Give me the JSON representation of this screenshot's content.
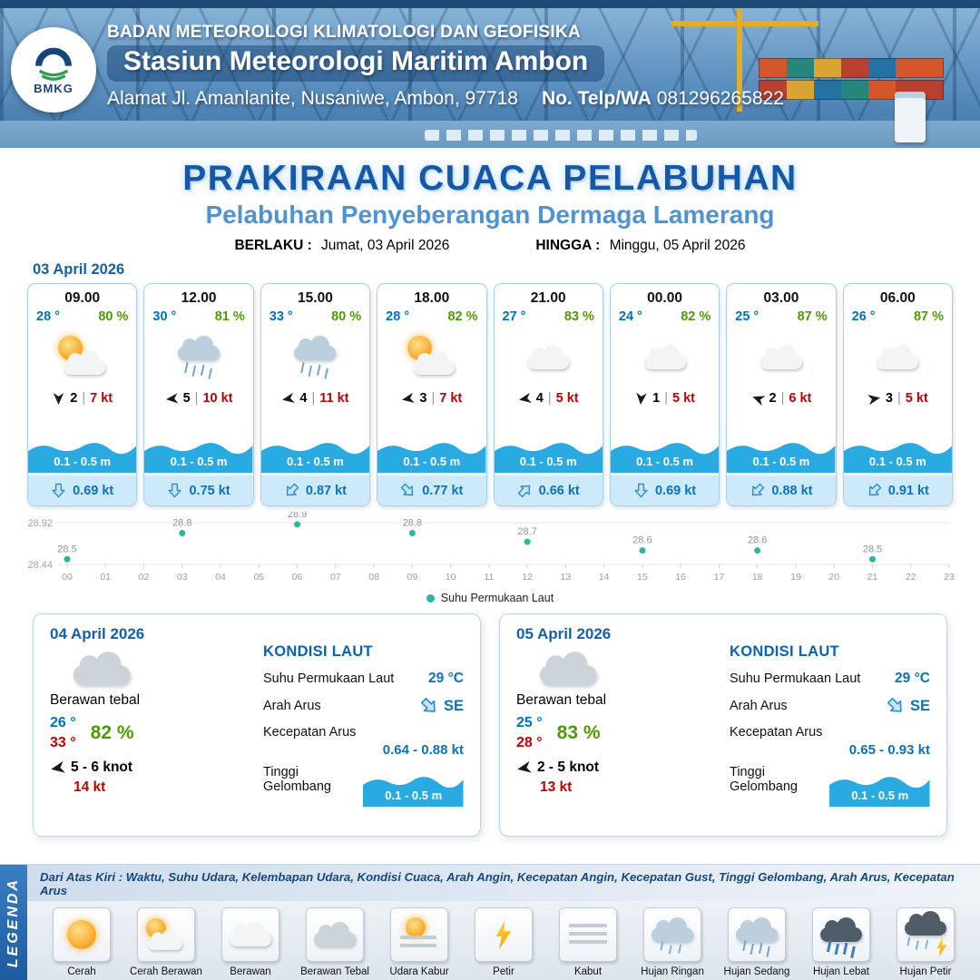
{
  "header": {
    "logo_text": "BMKG",
    "agency": "BADAN METEOROLOGI KLIMATOLOGI DAN GEOFISIKA",
    "station": "Stasiun Meteorologi Maritim Ambon",
    "address": "Alamat Jl. Amanlanite, Nusaniwe, Ambon, 97718",
    "phone_label": "No. Telp/WA",
    "phone_number": "081296265822"
  },
  "title": {
    "main": "PRAKIRAAN CUACA PELABUHAN",
    "subtitle": "Pelabuhan Penyeberangan Dermaga Lamerang",
    "valid_from_label": "BERLAKU :",
    "valid_from": "Jumat, 03 April 2026",
    "valid_to_label": "HINGGA :",
    "valid_to": "Minggu, 05 April 2026"
  },
  "forecast": {
    "date": "03 April 2026",
    "cards": [
      {
        "time": "09.00",
        "temp": "28 °",
        "humidity": "80 %",
        "weather": "cerah berawan",
        "wind_speed": "2",
        "divider": "|",
        "gust": "7 kt",
        "wave": "0.1 - 0.5 m",
        "current_speed": "0.69 kt",
        "wind_deg": 180,
        "current_deg": 180
      },
      {
        "time": "12.00",
        "temp": "30 °",
        "humidity": "81 %",
        "weather": "hujan",
        "wind_speed": "5",
        "divider": "|",
        "gust": "10 kt",
        "wave": "0.1 - 0.5 m",
        "current_speed": "0.75 kt",
        "wind_deg": 265,
        "current_deg": 180
      },
      {
        "time": "15.00",
        "temp": "33 °",
        "humidity": "80 %",
        "weather": "hujan",
        "wind_speed": "4",
        "divider": "|",
        "gust": "11 kt",
        "wave": "0.1 - 0.5 m",
        "current_speed": "0.87 kt",
        "wind_deg": 260,
        "current_deg": 225
      },
      {
        "time": "18.00",
        "temp": "28 °",
        "humidity": "82 %",
        "weather": "cerah berawan",
        "wind_speed": "3",
        "divider": "|",
        "gust": "7 kt",
        "wave": "0.1 - 0.5 m",
        "current_speed": "0.77 kt",
        "wind_deg": 260,
        "current_deg": 135
      },
      {
        "time": "21.00",
        "temp": "27 °",
        "humidity": "83 %",
        "weather": "berawan",
        "wind_speed": "4",
        "divider": "|",
        "gust": "5 kt",
        "wave": "0.1 - 0.5 m",
        "current_speed": "0.66 kt",
        "wind_deg": 260,
        "current_deg": 45
      },
      {
        "time": "00.00",
        "temp": "24 °",
        "humidity": "82 %",
        "weather": "berawan",
        "wind_speed": "1",
        "divider": "|",
        "gust": "5 kt",
        "wave": "0.1 - 0.5 m",
        "current_speed": "0.69 kt",
        "wind_deg": 185,
        "current_deg": 180
      },
      {
        "time": "03.00",
        "temp": "25 °",
        "humidity": "87 %",
        "weather": "berawan",
        "wind_speed": "2",
        "divider": "|",
        "gust": "6 kt",
        "wave": "0.1 - 0.5 m",
        "current_speed": "0.88 kt",
        "wind_deg": 290,
        "current_deg": 225
      },
      {
        "time": "06.00",
        "temp": "26 °",
        "humidity": "87 %",
        "weather": "berawan",
        "wind_speed": "3",
        "divider": "|",
        "gust": "5 kt",
        "wave": "0.1 - 0.5 m",
        "current_speed": "0.91 kt",
        "wind_deg": 80,
        "current_deg": 225
      }
    ]
  },
  "chart_data": {
    "type": "scatter",
    "series_name": "Suhu Permukaan Laut",
    "x": [
      0,
      3,
      6,
      9,
      12,
      15,
      18,
      21
    ],
    "values": [
      28.5,
      28.8,
      28.9,
      28.8,
      28.7,
      28.6,
      28.6,
      28.5
    ],
    "x_ticks": [
      "00",
      "01",
      "02",
      "03",
      "04",
      "05",
      "06",
      "07",
      "08",
      "09",
      "10",
      "11",
      "12",
      "13",
      "14",
      "15",
      "16",
      "17",
      "18",
      "19",
      "20",
      "21",
      "22",
      "23"
    ],
    "ylim": [
      28.44,
      28.92
    ],
    "y_axis_labels": [
      "28.92",
      "28.44"
    ],
    "point_color": "#2bb5a3",
    "grid": true,
    "legend_position": "bottom"
  },
  "daily_panels": [
    {
      "date": "04 April 2026",
      "condition": "Berawan tebal",
      "temp_min": "26 °",
      "temp_max": "33 °",
      "humidity": "82 %",
      "wind_range": "5 - 6 knot",
      "gust": "14 kt",
      "wind_deg": 260,
      "sea_title": "KONDISI LAUT",
      "sst_label": "Suhu Permukaan Laut",
      "sst_value": "29 °C",
      "current_dir_label": "Arah Arus",
      "current_dir": "SE",
      "current_dir_deg": 135,
      "current_speed_label": "Kecepatan Arus",
      "current_speed": "0.64 - 0.88 kt",
      "wave_label": "Tinggi Gelombang",
      "wave_value": "0.1 - 0.5 m"
    },
    {
      "date": "05 April 2026",
      "condition": "Berawan tebal",
      "temp_min": "25 °",
      "temp_max": "28 °",
      "humidity": "83 %",
      "wind_range": "2 - 5 knot",
      "gust": "13 kt",
      "wind_deg": 260,
      "sea_title": "KONDISI LAUT",
      "sst_label": "Suhu Permukaan Laut",
      "sst_value": "29 °C",
      "current_dir_label": "Arah Arus",
      "current_dir": "SE",
      "current_dir_deg": 135,
      "current_speed_label": "Kecepatan Arus",
      "current_speed": "0.65 - 0.93 kt",
      "wave_label": "Tinggi Gelombang",
      "wave_value": "0.1 - 0.5 m"
    }
  ],
  "legend": {
    "vertical_label": "LEGENDA",
    "description": "Dari Atas Kiri : Waktu, Suhu Udara, Kelembapan Udara, Kondisi Cuaca, Arah Angin, Kecepatan Angin, Kecepatan Gust, Tinggi Gelombang, Arah Arus, Kecepatan Arus",
    "items": [
      {
        "label": "Cerah",
        "icon": "sun-icon"
      },
      {
        "label": "Cerah Berawan",
        "icon": "sun-cloud-icon"
      },
      {
        "label": "Berawan",
        "icon": "cloud-icon"
      },
      {
        "label": "Berawan Tebal",
        "icon": "thick-cloud-icon"
      },
      {
        "label": "Udara Kabur",
        "icon": "haze-icon"
      },
      {
        "label": "Petir",
        "icon": "lightning-icon"
      },
      {
        "label": "Kabut",
        "icon": "fog-icon"
      },
      {
        "label": "Hujan Ringan",
        "icon": "light-rain-icon"
      },
      {
        "label": "Hujan Sedang",
        "icon": "moderate-rain-icon"
      },
      {
        "label": "Hujan Lebat",
        "icon": "heavy-rain-icon"
      },
      {
        "label": "Hujan Petir",
        "icon": "thunderstorm-icon"
      }
    ]
  }
}
